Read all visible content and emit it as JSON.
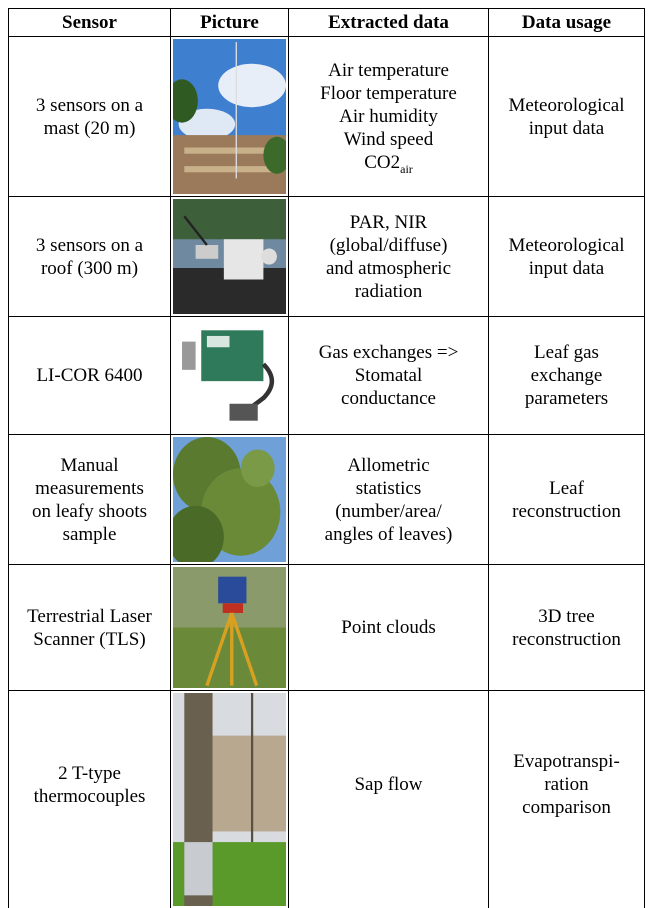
{
  "table": {
    "header": [
      "Sensor",
      "Picture",
      "Extracted data",
      "Data usage"
    ],
    "rows": [
      {
        "sensor": [
          "3 sensors on a",
          "mast (20 m)"
        ],
        "extracted": [
          "Air temperature",
          "Floor temperature",
          "Air humidity",
          "Wind speed",
          {
            "text": "CO2",
            "sub": "air"
          }
        ],
        "usage": [
          "Meteorological",
          "input data"
        ]
      },
      {
        "sensor": [
          "3 sensors on a",
          "roof (300 m)"
        ],
        "extracted": [
          "PAR, NIR",
          "(global/diffuse)",
          "and atmospheric",
          "radiation"
        ],
        "usage": [
          "Meteorological",
          "input data"
        ]
      },
      {
        "sensor": [
          "LI-COR 6400"
        ],
        "extracted": [
          "Gas exchanges =>",
          "Stomatal",
          "conductance"
        ],
        "usage": [
          "Leaf gas",
          "exchange",
          "parameters"
        ]
      },
      {
        "sensor": [
          "Manual",
          "measurements",
          "on leafy shoots",
          "sample"
        ],
        "extracted": [
          "Allometric",
          "statistics",
          "(number/area/",
          "angles of leaves)"
        ],
        "usage": [
          "Leaf",
          "reconstruction"
        ]
      },
      {
        "sensor": [
          "Terrestrial Laser",
          "Scanner (TLS)"
        ],
        "extracted": [
          "Point clouds"
        ],
        "usage": [
          "3D tree",
          "reconstruction"
        ]
      },
      {
        "sensor": [
          "2 T-type",
          "thermocouples"
        ],
        "extracted": [
          "Sap flow"
        ],
        "usage": [
          "Evapotranspi-",
          "ration",
          "comparison"
        ]
      }
    ]
  }
}
